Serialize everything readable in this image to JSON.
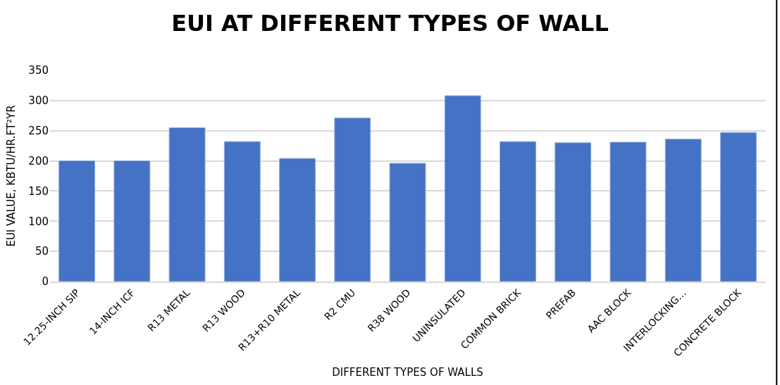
{
  "chart_data": {
    "type": "bar",
    "title": "EUI AT DIFFERENT TYPES OF WALL",
    "xlabel": "DIFFERENT TYPES OF WALLS",
    "ylabel": "EUI VALUE, KBTU/HR.FT²YR",
    "categories": [
      "12.25-INCH SIP",
      "14-INCH ICF",
      "R13 METAL",
      "R13 WOOD",
      "R13+R10 METAL",
      "R2 CMU",
      "R38 WOOD",
      "UNINSULATED",
      "COMMON BRICK",
      "PREFAB",
      "AAC BLOCK",
      "INTERLOCKING…",
      "CONCRETE BLOCK"
    ],
    "values": [
      200,
      200,
      255,
      232,
      204,
      271,
      196,
      308,
      232,
      230,
      231,
      236,
      247
    ],
    "color": "#4472c4",
    "ylim": [
      0,
      350
    ],
    "yticks": [
      0,
      50,
      100,
      150,
      200,
      250,
      300,
      350
    ],
    "grid": "y",
    "legend": false
  }
}
